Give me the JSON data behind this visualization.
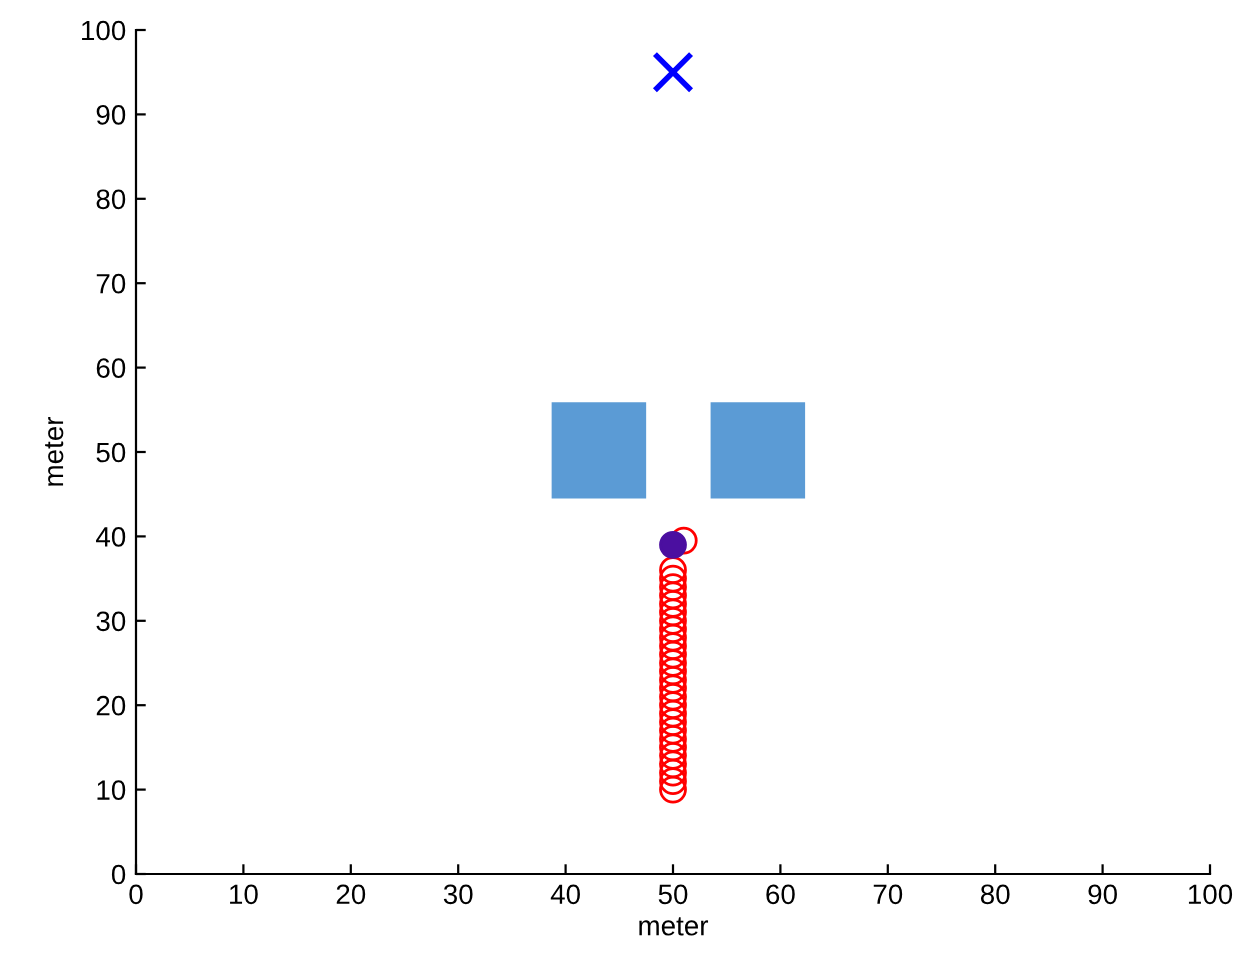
{
  "chart_data": {
    "type": "scatter",
    "xlabel": "meter",
    "ylabel": "meter",
    "xlim": [
      0,
      100
    ],
    "ylim": [
      0,
      100
    ],
    "xticks": [
      0,
      10,
      20,
      30,
      40,
      50,
      60,
      70,
      80,
      90,
      100
    ],
    "yticks": [
      0,
      10,
      20,
      30,
      40,
      50,
      60,
      70,
      80,
      90,
      100
    ],
    "grid": false,
    "legend": false,
    "series": [
      {
        "type": "bar",
        "color": "#5b9bd5",
        "x": [
          43.1,
          57.9
        ],
        "base": [
          44.5,
          44.5
        ],
        "values": [
          11.4,
          11.4
        ]
      },
      {
        "marker": "circle",
        "color": "#ff0000",
        "x": [
          50,
          50,
          50,
          50,
          50,
          50,
          50,
          50,
          50,
          50,
          50,
          50,
          50,
          50,
          50,
          50,
          50,
          50,
          50,
          50,
          50,
          50,
          50,
          50,
          50,
          50,
          50,
          51
        ],
        "values": [
          10,
          11,
          12,
          13,
          14,
          15,
          16,
          17,
          18,
          19,
          20,
          21,
          22,
          23,
          24,
          25,
          26,
          27,
          28,
          29,
          30,
          31,
          32,
          33,
          34,
          35,
          36,
          39.5
        ]
      },
      {
        "marker": "circle",
        "color": "#4b0fa0",
        "x": [
          50
        ],
        "values": [
          39
        ]
      },
      {
        "marker": "cross",
        "color": "#0000ff",
        "x": [
          50
        ],
        "values": [
          95
        ]
      }
    ]
  }
}
